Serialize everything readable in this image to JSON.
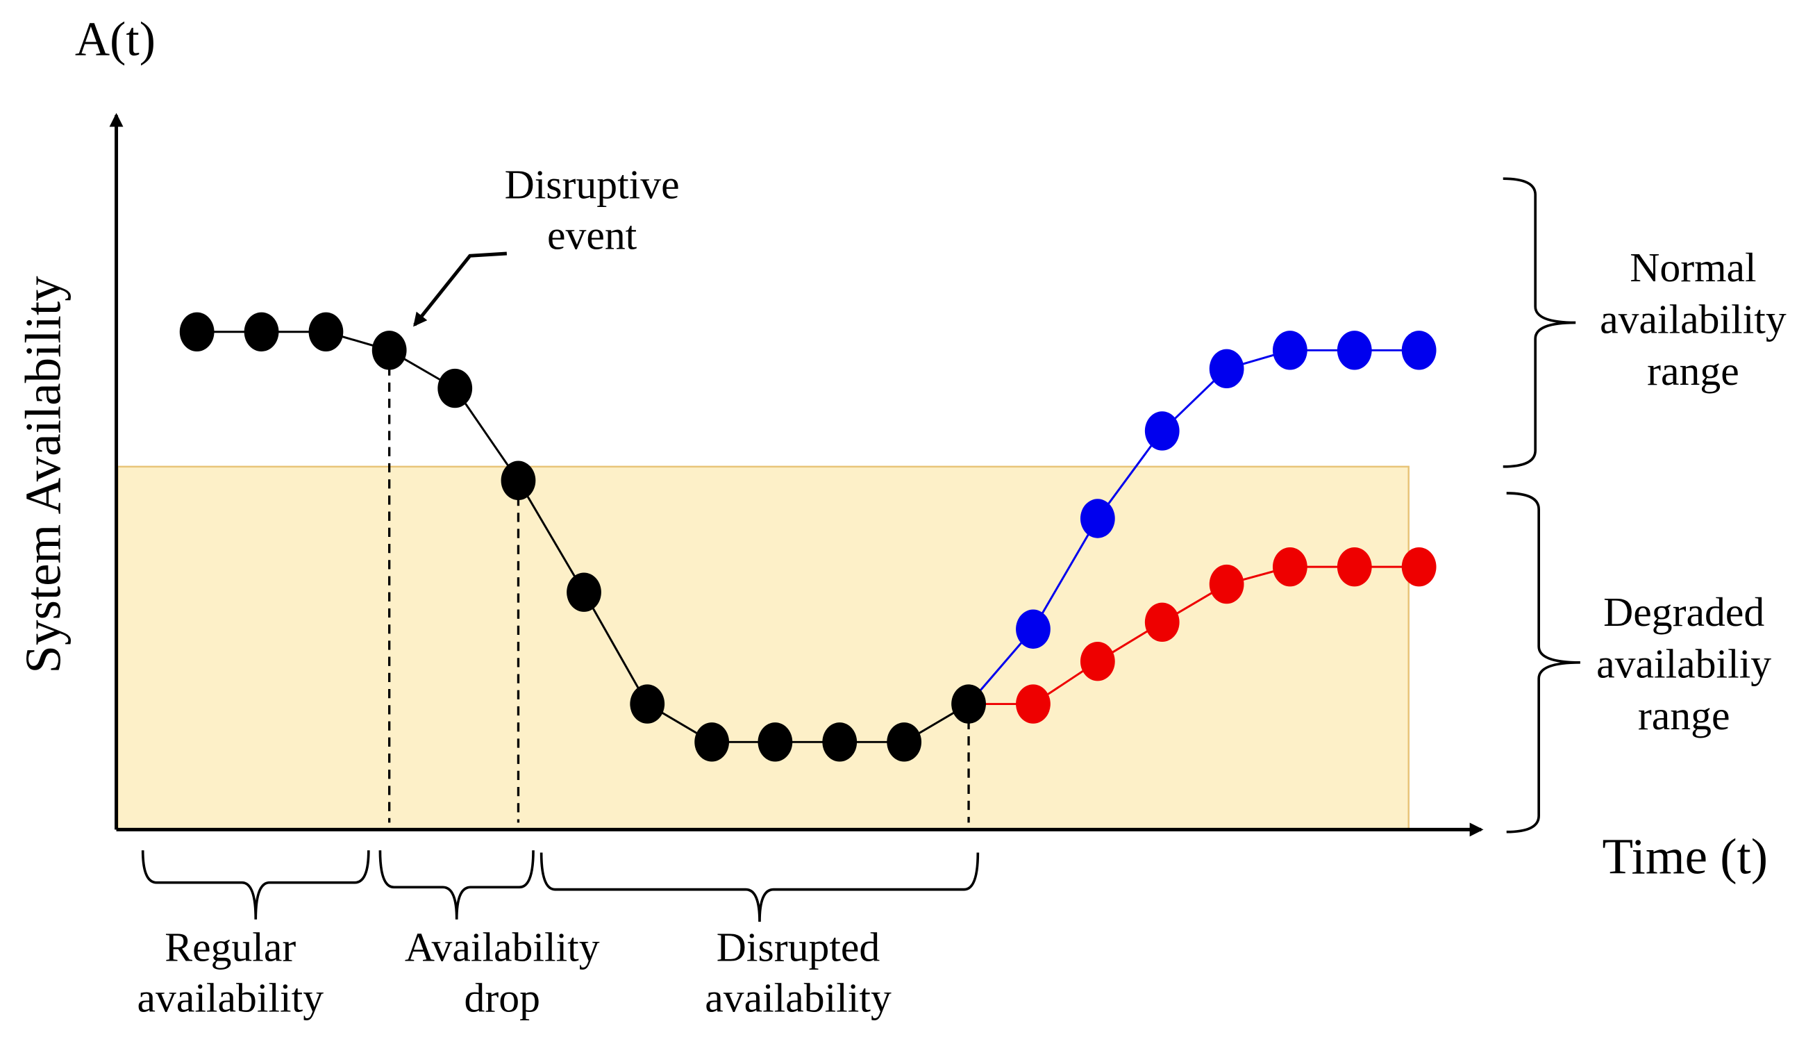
{
  "axes": {
    "y_symbol": "A(t)",
    "y_label": "System Availability",
    "x_label": "Time (t)"
  },
  "annotations": {
    "disruptive_event": [
      "Disruptive",
      "event"
    ]
  },
  "ranges": {
    "normal": [
      "Normal",
      "availability",
      "range"
    ],
    "degraded": [
      "Degraded",
      "availabiliy",
      "range"
    ]
  },
  "phases": {
    "regular": [
      "Regular",
      "availability"
    ],
    "drop": [
      "Availability",
      "drop"
    ],
    "disrupted": [
      "Disrupted",
      "availability"
    ]
  }
}
